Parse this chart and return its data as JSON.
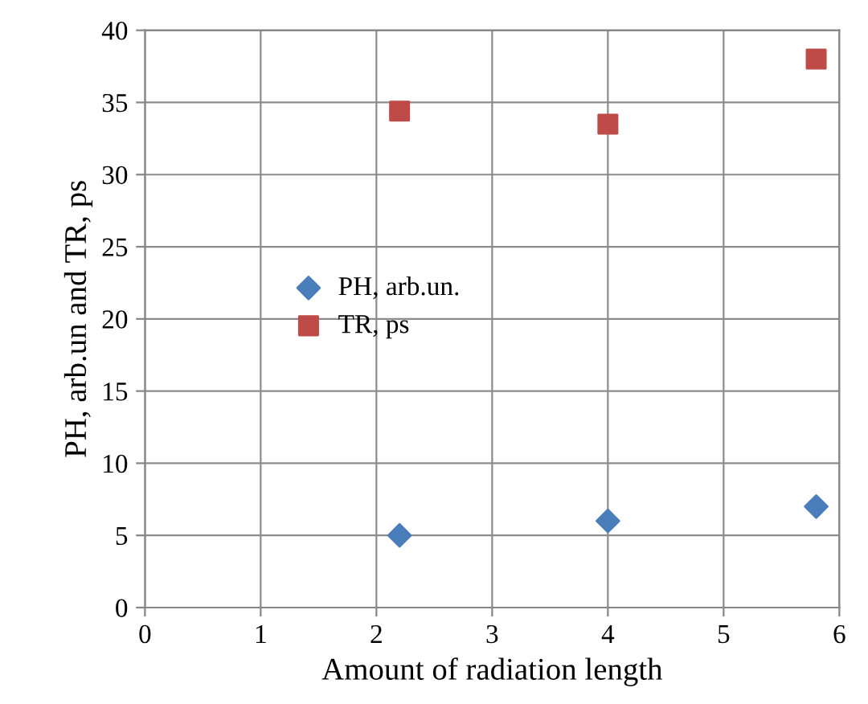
{
  "chart_data": {
    "type": "scatter",
    "xlabel": "Amount of radiation length",
    "ylabel": "PH, arb.un and TR, ps",
    "x": [
      2.2,
      4,
      5.8
    ],
    "series": [
      {
        "name": "PH, arb.un.",
        "color": "#4a7ebb",
        "marker": "diamond",
        "values": [
          5,
          6,
          7
        ]
      },
      {
        "name": "TR, ps",
        "color": "#be4b48",
        "marker": "square",
        "values": [
          34.4,
          33.5,
          38
        ]
      }
    ],
    "xlim": [
      0,
      6
    ],
    "xticks": [
      0,
      1,
      2,
      3,
      4,
      5,
      6
    ],
    "ylim": [
      0,
      40
    ],
    "yticks": [
      0,
      5,
      10,
      15,
      20,
      25,
      30,
      35,
      40
    ],
    "grid": true,
    "legend": "center left"
  }
}
